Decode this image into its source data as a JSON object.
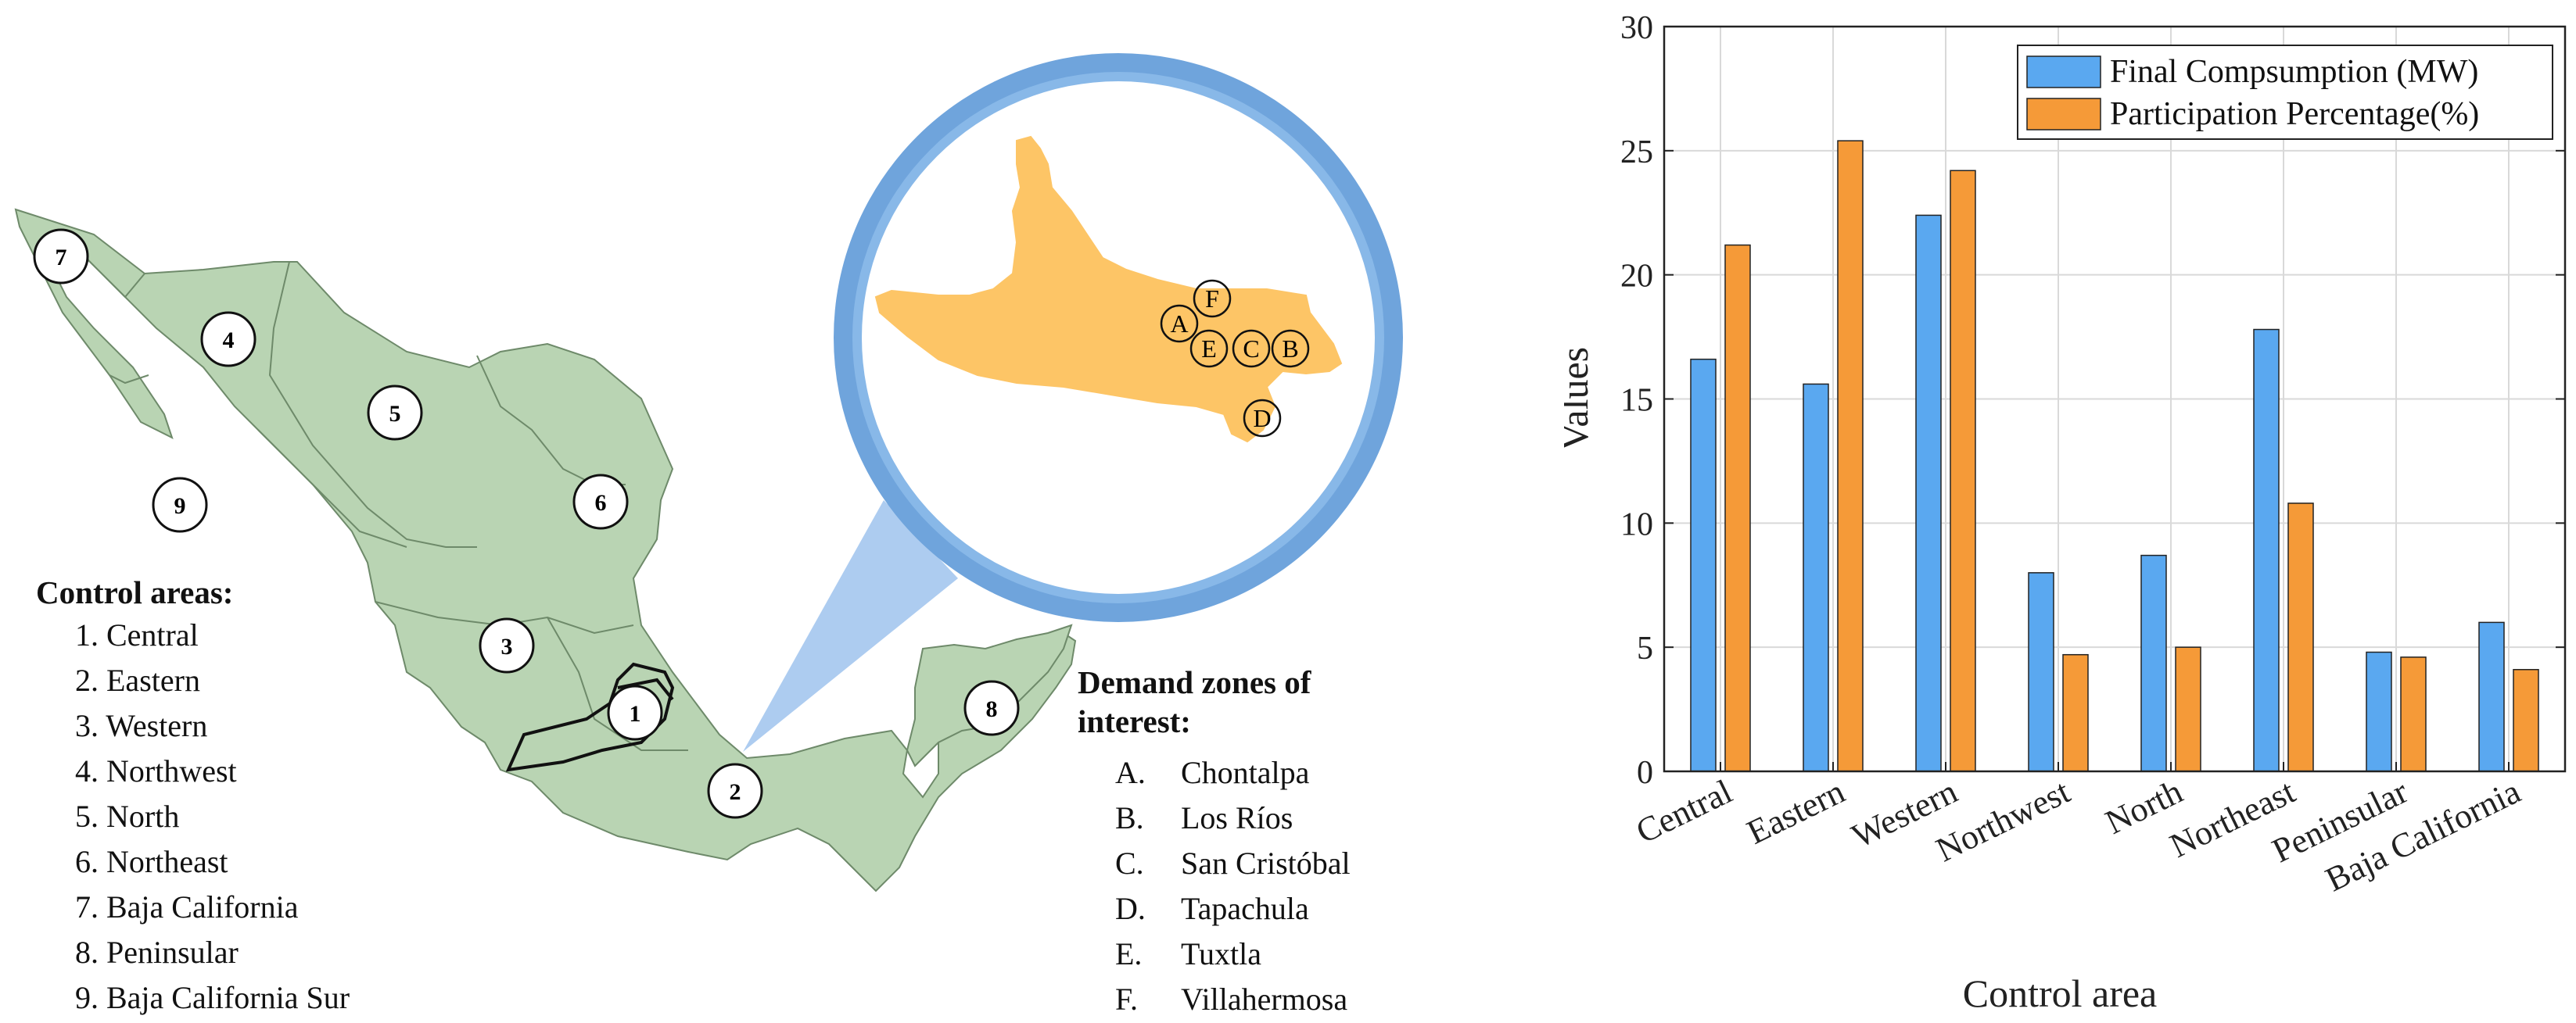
{
  "control_areas_heading": "Control areas:",
  "control_areas": [
    "1. Central",
    "2. Eastern",
    "3. Western",
    "4. Northwest",
    "5. North",
    "6. Northeast",
    "7. Baja California",
    "8. Peninsular",
    "9. Baja California Sur"
  ],
  "demand_zones_heading": [
    "Demand zones of",
    "interest:"
  ],
  "demand_zones": [
    {
      "letter": "A.",
      "name": "Chontalpa"
    },
    {
      "letter": "B.",
      "name": "Los Ríos"
    },
    {
      "letter": "C.",
      "name": "San Cristóbal"
    },
    {
      "letter": "D.",
      "name": "Tapachula"
    },
    {
      "letter": "E.",
      "name": "Tuxtla"
    },
    {
      "letter": "F.",
      "name": "Villahermosa"
    }
  ],
  "map_markers": [
    "1",
    "2",
    "3",
    "4",
    "5",
    "6",
    "7",
    "8",
    "9"
  ],
  "zone_markers": [
    "A",
    "B",
    "C",
    "D",
    "E",
    "F"
  ],
  "colors": {
    "map_fill": "#b9d4b3",
    "zoom_fill": "#fdc566",
    "zoom_ring": "#6fa4dc",
    "series_blue": "#5aa8f0",
    "series_orange": "#f59a38"
  },
  "chart_data": {
    "type": "bar",
    "categories": [
      "Central",
      "Eastern",
      "Western",
      "Northwest",
      "North",
      "Northeast",
      "Peninsular",
      "Baja California"
    ],
    "series": [
      {
        "name": "Final Compsumption (MW)",
        "values": [
          16.6,
          15.6,
          22.4,
          8.0,
          8.7,
          17.8,
          4.8,
          6.0
        ]
      },
      {
        "name": "Participation Percentage(%)",
        "values": [
          21.2,
          25.4,
          24.2,
          4.7,
          5.0,
          10.8,
          4.6,
          4.1
        ]
      }
    ],
    "xlabel": "Control area",
    "ylabel": "Values",
    "ylim": [
      0,
      30
    ],
    "yticks": [
      "0",
      "5",
      "10",
      "15",
      "20",
      "25",
      "30"
    ],
    "grid": true,
    "legend": "top-right"
  }
}
